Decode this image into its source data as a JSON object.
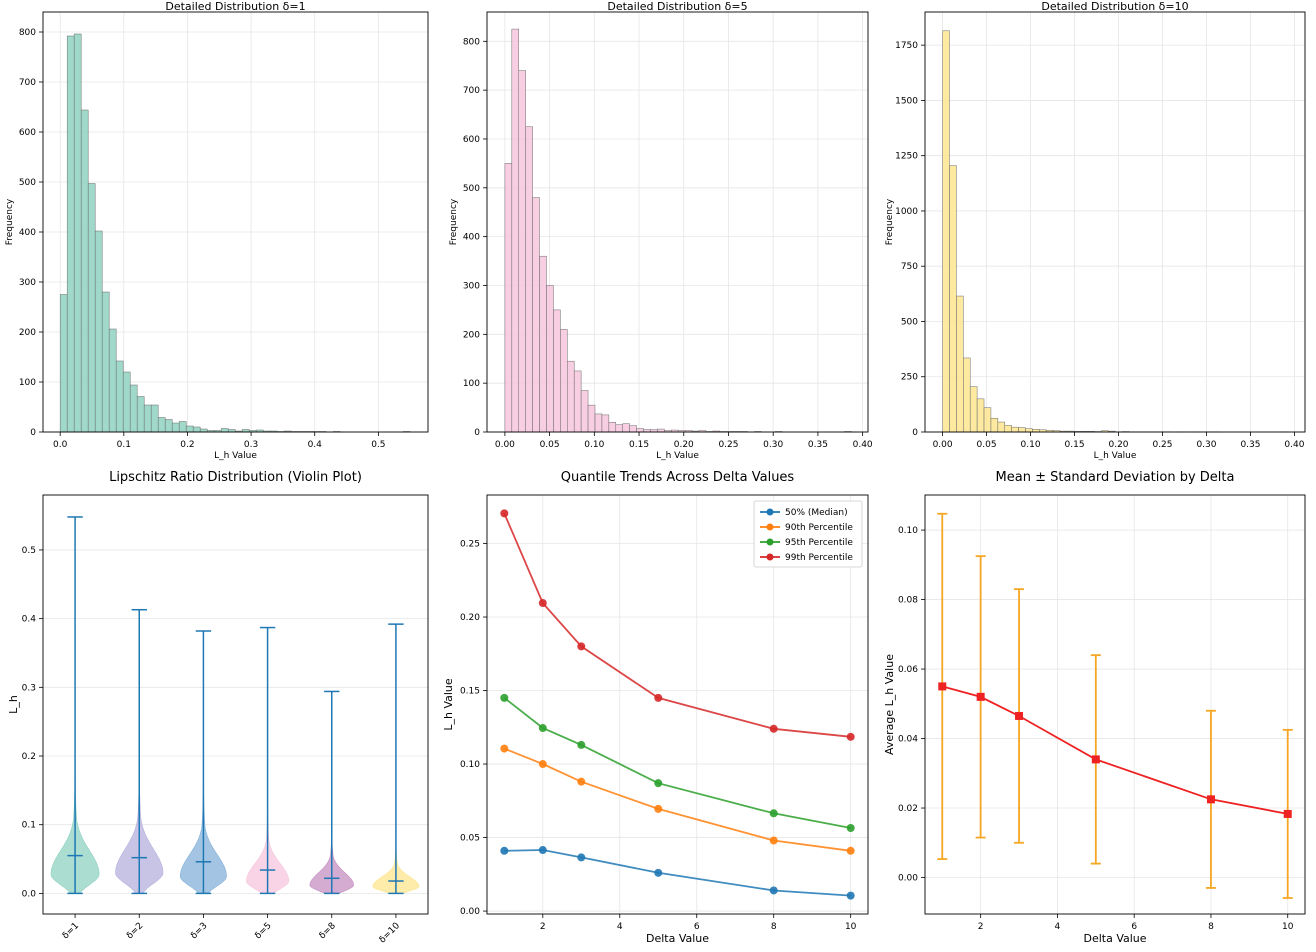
{
  "chart_data": [
    {
      "type": "bar",
      "title": "Detailed Distribution δ=1",
      "xlabel": "L_h Value",
      "ylabel": "Frequency",
      "xlim": [
        -0.027,
        0.578
      ],
      "ylim": [
        0,
        840
      ],
      "xticks": [
        "0.0",
        "0.1",
        "0.2",
        "0.3",
        "0.4",
        "0.5"
      ],
      "xtick_values": [
        0,
        0.1,
        0.2,
        0.3,
        0.4,
        0.5
      ],
      "yticks": [
        "0",
        "100",
        "200",
        "300",
        "400",
        "500",
        "600",
        "700",
        "800"
      ],
      "ytick_values": [
        0,
        100,
        200,
        300,
        400,
        500,
        600,
        700,
        800
      ],
      "bin_start": 0.0,
      "bin_width": 0.011,
      "values": [
        275,
        792,
        796,
        644,
        497,
        402,
        280,
        206,
        142,
        120,
        94,
        71,
        54,
        54,
        29,
        25,
        18,
        21,
        12,
        10,
        6,
        3,
        3,
        7,
        5,
        2,
        5,
        3,
        4,
        2,
        2,
        1,
        2,
        1,
        1,
        1,
        1,
        1,
        0,
        1,
        0,
        0,
        0,
        0,
        0,
        0,
        0,
        0,
        0,
        1
      ],
      "color": "#8fd2c0"
    },
    {
      "type": "bar",
      "title": "Detailed Distribution δ=5",
      "xlabel": "L_h Value",
      "ylabel": "Frequency",
      "xlim": [
        -0.02,
        0.406
      ],
      "ylim": [
        0,
        860
      ],
      "xticks": [
        "0.00",
        "0.05",
        "0.10",
        "0.15",
        "0.20",
        "0.25",
        "0.30",
        "0.35",
        "0.40"
      ],
      "xtick_values": [
        0,
        0.05,
        0.1,
        0.15,
        0.2,
        0.25,
        0.3,
        0.35,
        0.4
      ],
      "yticks": [
        "0",
        "100",
        "200",
        "300",
        "400",
        "500",
        "600",
        "700",
        "800"
      ],
      "ytick_values": [
        0,
        100,
        200,
        300,
        400,
        500,
        600,
        700,
        800
      ],
      "bin_start": 0.0,
      "bin_width": 0.00775,
      "values": [
        550,
        825,
        740,
        625,
        480,
        360,
        300,
        250,
        210,
        145,
        125,
        85,
        55,
        37,
        35,
        20,
        15,
        17,
        13,
        7,
        5,
        5,
        6,
        3,
        4,
        3,
        3,
        2,
        3,
        1,
        2,
        1,
        1,
        1,
        1,
        0,
        1,
        0,
        0,
        1,
        0,
        0,
        0,
        0,
        0,
        0,
        0,
        0,
        0,
        1
      ],
      "color": "#f7c6dd"
    },
    {
      "type": "bar",
      "title": "Detailed Distribution δ=10",
      "xlabel": "L_h Value",
      "ylabel": "Frequency",
      "xlim": [
        -0.02,
        0.412
      ],
      "ylim": [
        0,
        1900
      ],
      "xticks": [
        "0.00",
        "0.05",
        "0.10",
        "0.15",
        "0.20",
        "0.25",
        "0.30",
        "0.35",
        "0.40"
      ],
      "xtick_values": [
        0,
        0.05,
        0.1,
        0.15,
        0.2,
        0.25,
        0.3,
        0.35,
        0.4
      ],
      "yticks": [
        "0",
        "250",
        "500",
        "750",
        "1000",
        "1250",
        "1500",
        "1750"
      ],
      "ytick_values": [
        0,
        250,
        500,
        750,
        1000,
        1250,
        1500,
        1750
      ],
      "bin_start": 0.0,
      "bin_width": 0.00785,
      "values": [
        1815,
        1205,
        615,
        335,
        205,
        150,
        110,
        62,
        45,
        30,
        22,
        20,
        15,
        12,
        10,
        8,
        6,
        4,
        4,
        3,
        3,
        3,
        2,
        6,
        4,
        1,
        2,
        1,
        1,
        1,
        1,
        1,
        1,
        0,
        1,
        0,
        1,
        0,
        1,
        1,
        0,
        0,
        0,
        0,
        0,
        0,
        0,
        0,
        0,
        1
      ],
      "color": "#fde58f"
    },
    {
      "type": "violin",
      "title": "Lipschitz Ratio Distribution (Violin Plot)",
      "xlabel": "",
      "ylabel": "L_h",
      "ylim": [
        -0.03,
        0.58
      ],
      "yticks": [
        "0.0",
        "0.1",
        "0.2",
        "0.3",
        "0.4",
        "0.5"
      ],
      "ytick_values": [
        0,
        0.1,
        0.2,
        0.3,
        0.4,
        0.5
      ],
      "categories": [
        "δ=1",
        "δ=2",
        "δ=3",
        "δ=5",
        "δ=8",
        "δ=10"
      ],
      "min": [
        0.0,
        0.0,
        0.0,
        0.0,
        0.0,
        0.0
      ],
      "max": [
        0.548,
        0.413,
        0.382,
        0.387,
        0.294,
        0.392
      ],
      "mean": [
        0.055,
        0.052,
        0.046,
        0.034,
        0.022,
        0.018
      ],
      "mode": [
        0.028,
        0.03,
        0.025,
        0.018,
        0.012,
        0.01
      ],
      "peak_width": [
        0.75,
        0.74,
        0.72,
        0.66,
        0.68,
        0.72
      ],
      "spread": [
        0.034,
        0.034,
        0.031,
        0.025,
        0.018,
        0.014
      ],
      "colors": [
        "#8fd2c0",
        "#b5b0dd",
        "#84b1da",
        "#f7c6dd",
        "#c58fc2",
        "#fde58f"
      ],
      "line_color": "#1f77b4"
    },
    {
      "type": "line",
      "title": "Quantile Trends Across Delta Values",
      "xlabel": "Delta Value",
      "ylabel": "L_h Value",
      "xlim": [
        0.55,
        10.45
      ],
      "ylim": [
        -0.002,
        0.283
      ],
      "xticks": [
        "2",
        "4",
        "6",
        "8",
        "10"
      ],
      "xtick_values": [
        2,
        4,
        6,
        8,
        10
      ],
      "yticks": [
        "0.00",
        "0.05",
        "0.10",
        "0.15",
        "0.20",
        "0.25"
      ],
      "ytick_values": [
        0,
        0.05,
        0.1,
        0.15,
        0.2,
        0.25
      ],
      "x": [
        1,
        2,
        3,
        5,
        8,
        10
      ],
      "legend_position": "top-right",
      "series": [
        {
          "name": "50% (Median)",
          "values": [
            0.041,
            0.0415,
            0.0365,
            0.026,
            0.014,
            0.0105
          ],
          "color": "#1f77b4"
        },
        {
          "name": "90th Percentile",
          "values": [
            0.1105,
            0.1,
            0.088,
            0.0695,
            0.048,
            0.041
          ],
          "color": "#ff7f0e"
        },
        {
          "name": "95th Percentile",
          "values": [
            0.145,
            0.1245,
            0.113,
            0.087,
            0.0665,
            0.0565
          ],
          "color": "#2ca02c"
        },
        {
          "name": "99th Percentile",
          "values": [
            0.2705,
            0.2095,
            0.18,
            0.145,
            0.124,
            0.1185
          ],
          "color": "#d62728"
        }
      ]
    },
    {
      "type": "errorbar",
      "title": "Mean ± Standard Deviation by Delta",
      "xlabel": "Delta Value",
      "ylabel": "Average L_h Value",
      "xlim": [
        0.55,
        10.45
      ],
      "ylim": [
        -0.0105,
        0.1101
      ],
      "xticks": [
        "2",
        "4",
        "6",
        "8",
        "10"
      ],
      "xtick_values": [
        2,
        4,
        6,
        8,
        10
      ],
      "yticks": [
        "0.00",
        "0.02",
        "0.04",
        "0.06",
        "0.08",
        "0.10"
      ],
      "ytick_values": [
        0,
        0.02,
        0.04,
        0.06,
        0.08,
        0.1
      ],
      "x": [
        1,
        2,
        3,
        5,
        8,
        10
      ],
      "mean": [
        0.055,
        0.052,
        0.0465,
        0.034,
        0.0225,
        0.0183
      ],
      "std": [
        0.0497,
        0.0405,
        0.0365,
        0.03,
        0.0255,
        0.0242
      ],
      "line_color": "#ee2222",
      "error_color": "#f5a623"
    }
  ]
}
